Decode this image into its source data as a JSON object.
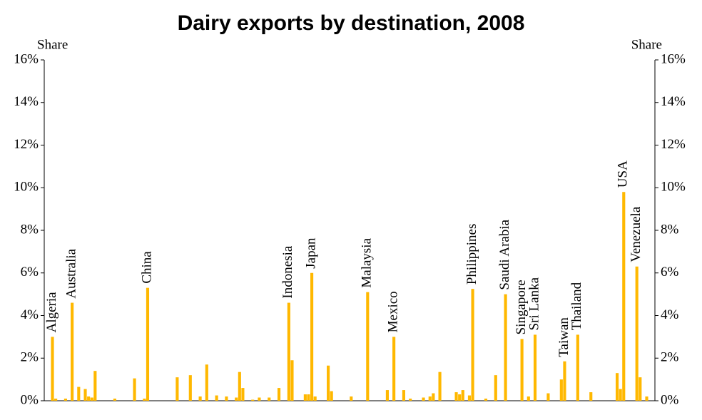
{
  "chart_data": {
    "type": "bar",
    "title": "Dairy exports by destination, 2008",
    "y_label": "Share",
    "y2_label": "Share",
    "color": "#ffb800",
    "categories": [
      null,
      null,
      "Algeria",
      null,
      null,
      null,
      null,
      null,
      "Australia",
      null,
      null,
      null,
      null,
      null,
      null,
      null,
      null,
      null,
      null,
      null,
      null,
      null,
      null,
      null,
      null,
      null,
      null,
      null,
      null,
      null,
      null,
      "China",
      null,
      null,
      null,
      null,
      null,
      null,
      null,
      null,
      null,
      null,
      null,
      null,
      null,
      null,
      null,
      null,
      null,
      null,
      null,
      null,
      null,
      null,
      null,
      null,
      null,
      null,
      null,
      null,
      null,
      null,
      null,
      null,
      null,
      null,
      null,
      null,
      null,
      null,
      null,
      null,
      null,
      null,
      "Indonesia",
      null,
      null,
      null,
      null,
      null,
      null,
      "Japan",
      null,
      null,
      null,
      null,
      null,
      null,
      null,
      null,
      null,
      null,
      null,
      null,
      null,
      null,
      null,
      null,
      "Malaysia",
      null,
      null,
      null,
      null,
      null,
      null,
      null,
      "Mexico",
      null,
      null,
      null,
      null,
      null,
      null,
      null,
      null,
      null,
      null,
      null,
      null,
      null,
      null,
      null,
      null,
      null,
      null,
      null,
      null,
      null,
      null,
      null,
      "Philippines",
      null,
      null,
      null,
      null,
      null,
      null,
      null,
      null,
      null,
      "Saudi Arabia",
      null,
      null,
      null,
      null,
      "Singapore",
      null,
      null,
      null,
      "Sri Lanka",
      null,
      null,
      null,
      null,
      null,
      null,
      null,
      null,
      "Taiwan",
      null,
      null,
      null,
      "Thailand",
      null,
      null,
      null,
      null,
      null,
      null,
      null,
      null,
      null,
      null,
      null,
      null,
      null,
      "USA",
      null,
      null,
      null,
      "Venezuela",
      null,
      null,
      null,
      null,
      null
    ],
    "values": [
      0,
      0,
      3.0,
      0.1,
      0,
      0,
      0.1,
      0,
      4.6,
      0,
      0.65,
      0,
      0.55,
      0.2,
      0.15,
      1.4,
      0,
      0,
      0,
      0,
      0,
      0.1,
      0,
      0,
      0,
      0,
      0,
      1.05,
      0,
      0,
      0.1,
      5.3,
      0,
      0,
      0,
      0,
      0,
      0,
      0,
      0,
      1.1,
      0,
      0,
      0,
      1.2,
      0,
      0,
      0.2,
      0,
      1.7,
      0,
      0,
      0.25,
      0,
      0,
      0.2,
      0,
      0,
      0.15,
      1.35,
      0.6,
      0,
      0,
      0.05,
      0,
      0.15,
      0,
      0,
      0.15,
      0,
      0,
      0.6,
      0,
      0,
      4.6,
      1.9,
      0,
      0,
      0,
      0.3,
      0.3,
      6.0,
      0.2,
      0,
      0,
      0,
      1.65,
      0.45,
      0,
      0,
      0,
      0,
      0,
      0.2,
      0,
      0,
      0,
      0,
      5.1,
      0,
      0,
      0,
      0,
      0,
      0.5,
      0,
      3.0,
      0,
      0,
      0.5,
      0,
      0.1,
      0,
      0,
      0,
      0.15,
      0,
      0.2,
      0.35,
      0,
      1.35,
      0,
      0,
      0,
      0,
      0.4,
      0.3,
      0.5,
      0,
      0.25,
      5.25,
      0,
      0,
      0,
      0.1,
      0,
      0,
      1.2,
      0,
      0,
      5.0,
      0,
      0,
      0,
      0,
      2.9,
      0,
      0.2,
      0,
      3.1,
      0,
      0,
      0,
      0.35,
      0,
      0,
      0,
      1.0,
      1.85,
      0,
      0,
      0,
      3.1,
      0,
      0,
      0,
      0.4,
      0,
      0,
      0,
      0,
      0,
      0,
      0,
      1.3,
      0.55,
      9.8,
      0,
      0,
      0,
      6.3,
      1.1,
      0,
      0.2,
      0,
      0
    ],
    "ylim": [
      0,
      16
    ],
    "yticks": [
      {
        "value": 0,
        "label": "0%"
      },
      {
        "value": 2,
        "label": "2%"
      },
      {
        "value": 4,
        "label": "4%"
      },
      {
        "value": 6,
        "label": "6%"
      },
      {
        "value": 8,
        "label": "8%"
      },
      {
        "value": 10,
        "label": "10%"
      },
      {
        "value": 12,
        "label": "12%"
      },
      {
        "value": 14,
        "label": "14%"
      },
      {
        "value": 16,
        "label": "16%"
      }
    ],
    "y2lim": [
      0,
      16
    ],
    "y2ticks": [
      {
        "value": 0,
        "label": "0%"
      },
      {
        "value": 2,
        "label": "2%"
      },
      {
        "value": 4,
        "label": "4%"
      },
      {
        "value": 6,
        "label": "6%"
      },
      {
        "value": 8,
        "label": "8%"
      },
      {
        "value": 10,
        "label": "10%"
      },
      {
        "value": 12,
        "label": "12%"
      },
      {
        "value": 14,
        "label": "14%"
      },
      {
        "value": 16,
        "label": "16%"
      }
    ]
  }
}
